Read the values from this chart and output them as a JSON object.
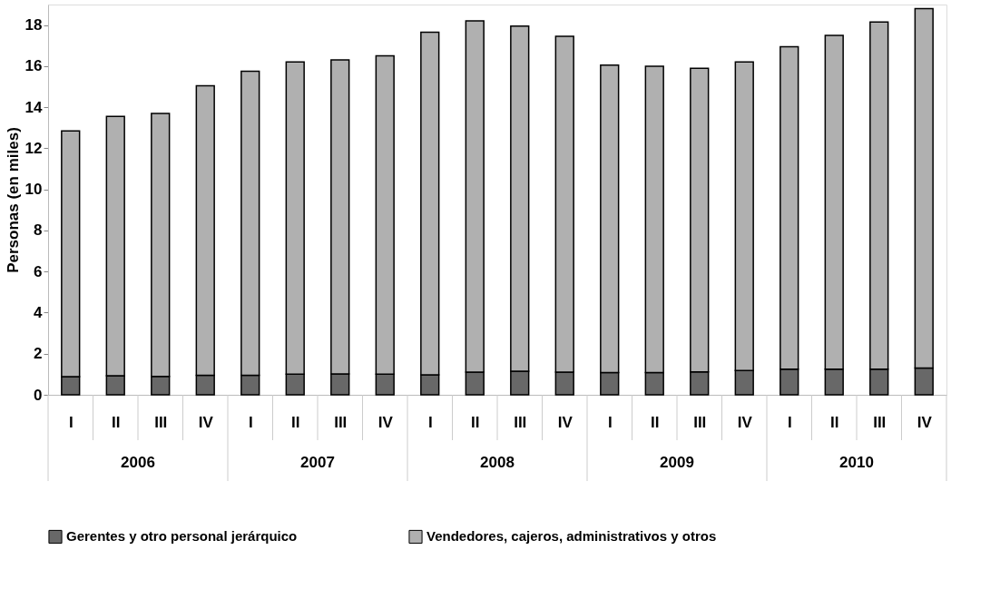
{
  "chart_data": {
    "type": "bar",
    "stacked": true,
    "ylabel": "Personas (en miles)",
    "categories": [
      "I",
      "II",
      "III",
      "IV",
      "I",
      "II",
      "III",
      "IV",
      "I",
      "II",
      "III",
      "IV",
      "I",
      "II",
      "III",
      "IV",
      "I",
      "II",
      "III",
      "IV"
    ],
    "annotations": [
      "2006",
      "2007",
      "2008",
      "2009",
      "2010"
    ],
    "series": [
      {
        "name": "Gerentes y otro personal jerárquico",
        "color": "#686868",
        "values": [
          0.88,
          0.93,
          0.9,
          0.95,
          0.95,
          1.0,
          1.02,
          1.0,
          0.97,
          1.1,
          1.15,
          1.1,
          1.08,
          1.08,
          1.12,
          1.18,
          1.25,
          1.25,
          1.25,
          1.3
        ]
      },
      {
        "name": "Vendedores, cajeros, administrativos y otros",
        "color": "#b0b0b0",
        "values": [
          11.97,
          12.62,
          12.8,
          14.1,
          14.8,
          15.2,
          15.28,
          15.5,
          16.68,
          17.1,
          16.8,
          16.35,
          14.97,
          14.92,
          14.78,
          15.02,
          15.7,
          16.25,
          16.9,
          17.5
        ]
      }
    ],
    "ylim": [
      0,
      19
    ],
    "yticks": [
      0,
      2,
      4,
      6,
      8,
      10,
      12,
      14,
      16,
      18
    ],
    "grid": false,
    "legend": "bottom"
  }
}
